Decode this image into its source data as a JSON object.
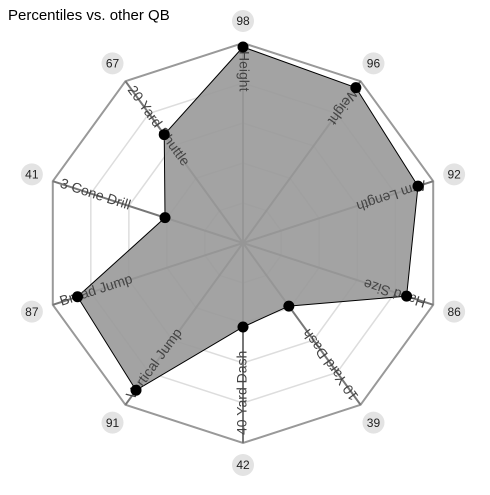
{
  "chart_data": {
    "type": "radar",
    "title": "Percentiles vs. other QB",
    "categories": [
      "Height",
      "Weight",
      "Arm Length",
      "Hand Size",
      "10 Yard Dash",
      "40 Yard Dash",
      "Vertical Jump",
      "Broad Jump",
      "3 Cone Drill",
      "20 Yard Shuttle"
    ],
    "values": [
      98,
      96,
      92,
      86,
      39,
      42,
      91,
      87,
      41,
      67
    ],
    "color": "#999999",
    "rlim": [
      0,
      100
    ],
    "rticks": [
      20,
      40,
      60,
      80,
      100
    ],
    "grid": true
  }
}
